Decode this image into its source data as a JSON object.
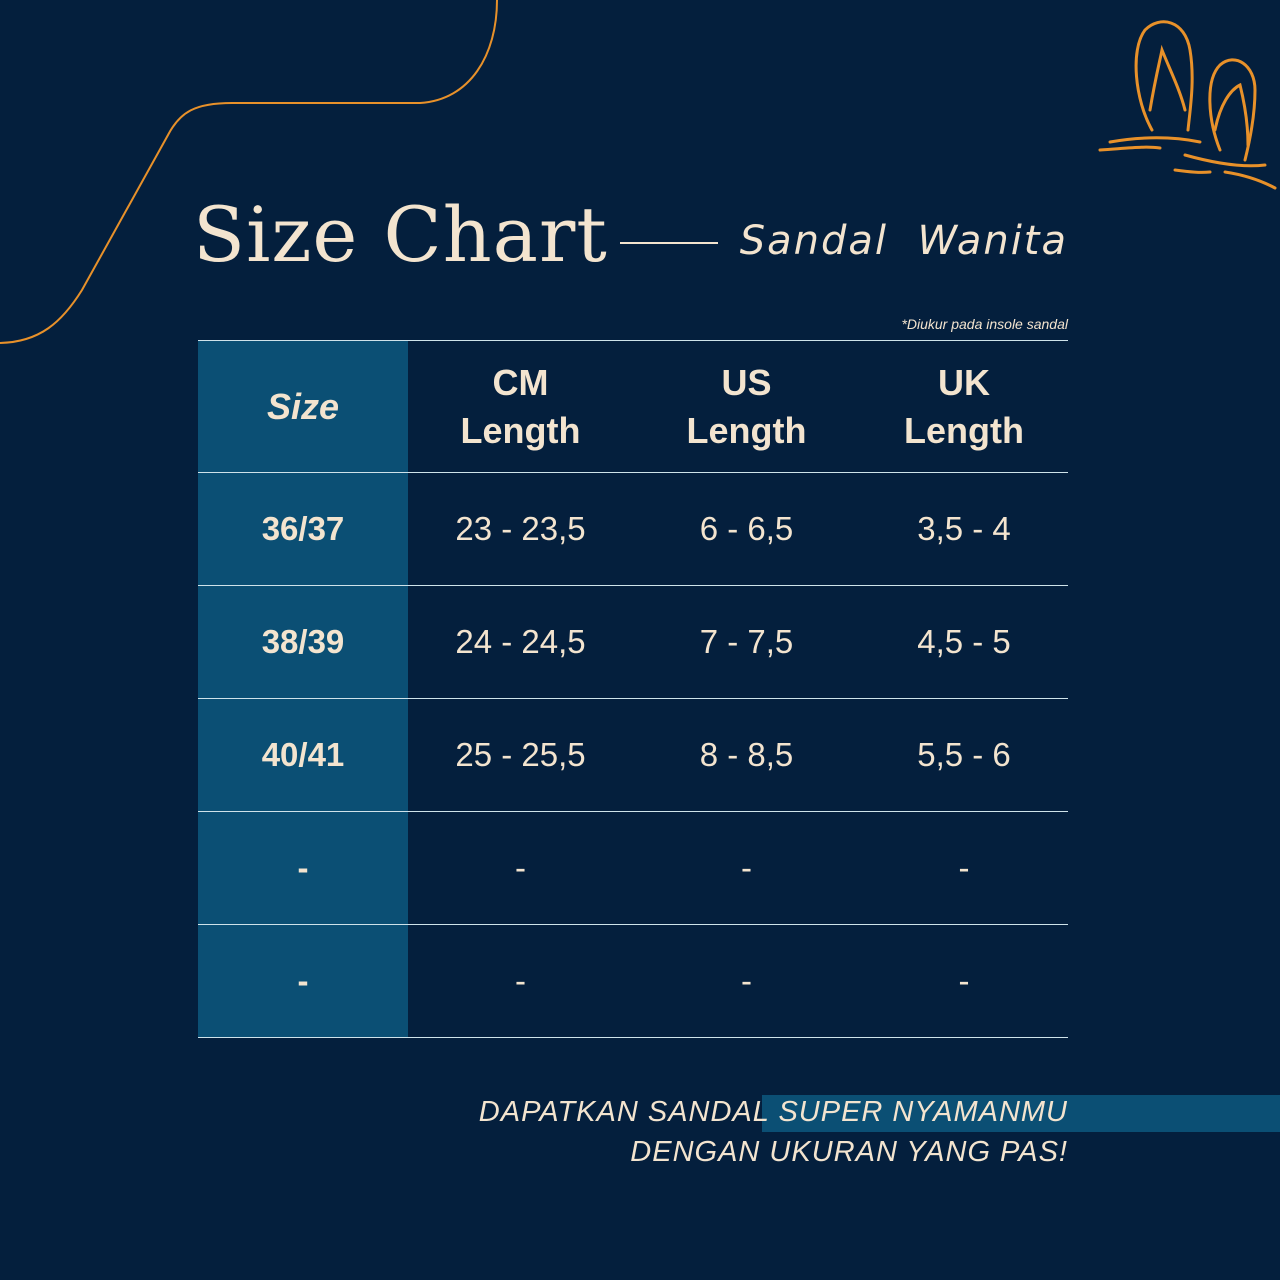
{
  "title": "Size Chart",
  "subtitle": "Sandal  Wanita",
  "note": "*Diukur pada insole sandal",
  "colors": {
    "background": "#041f3d",
    "accent_column": "#0b4f74",
    "text": "#f3e4cf",
    "decor_orange": "#e8912a"
  },
  "decoration_icon": "flip-flops-on-sand-icon",
  "table": {
    "headers": [
      [
        "Size"
      ],
      [
        "CM",
        "Length"
      ],
      [
        "US",
        "Length"
      ],
      [
        "UK",
        "Length"
      ]
    ],
    "rows": [
      [
        "36/37",
        "23 - 23,5",
        "6 - 6,5",
        "3,5 - 4"
      ],
      [
        "38/39",
        "24 - 24,5",
        "7 - 7,5",
        "4,5 - 5"
      ],
      [
        "40/41",
        "25 - 25,5",
        "8 - 8,5",
        "5,5 - 6"
      ],
      [
        "-",
        "-",
        "-",
        "-"
      ],
      [
        "-",
        "-",
        "-",
        "-"
      ]
    ]
  },
  "tagline": {
    "line1_plain": "DAPATKAN SANDAL ",
    "line1_highlight": "SUPER NYAMANMU",
    "line2": "DENGAN UKURAN YANG PAS!"
  }
}
